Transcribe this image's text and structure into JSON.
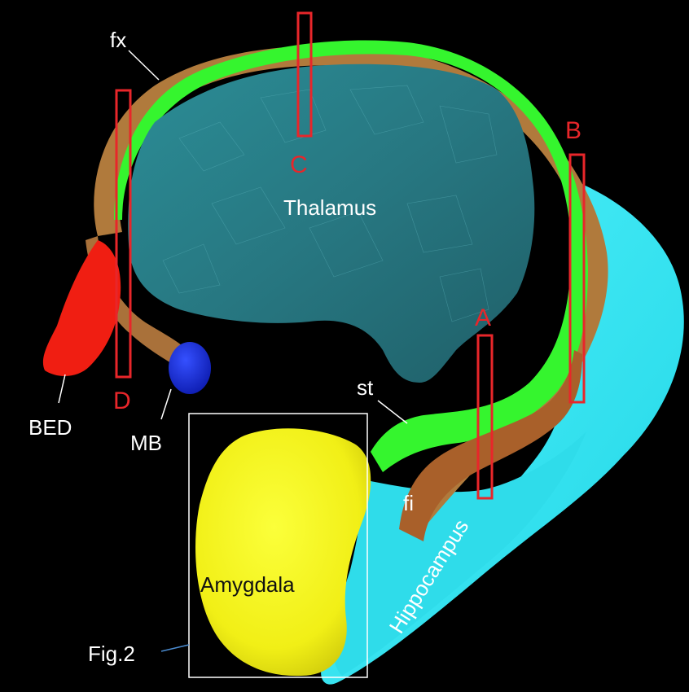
{
  "figure": {
    "structures": {
      "thalamus": "Thalamus",
      "hippocampus": "Hippocampus",
      "amygdala": "Amygdala",
      "fornix": "fx",
      "stria_terminalis": "st",
      "fimbria": "fi",
      "bed_nucleus": "BED",
      "mammillary_body": "MB"
    },
    "section_markers": {
      "a": "A",
      "b": "B",
      "c": "C",
      "d": "D"
    },
    "inset_reference": "Fig.2"
  },
  "colors": {
    "background": "#000000",
    "thalamus": "#2f8a93",
    "stria_terminalis": "#39ff2e",
    "fornix": "#b37a3a",
    "hippocampus": "#35e6f2",
    "amygdala": "#f5f31e",
    "bed_nucleus": "#f21e12",
    "mammillary_body": "#1a2ee6",
    "section_marker": "#e8262a",
    "inset_frame": "#ffffff"
  }
}
